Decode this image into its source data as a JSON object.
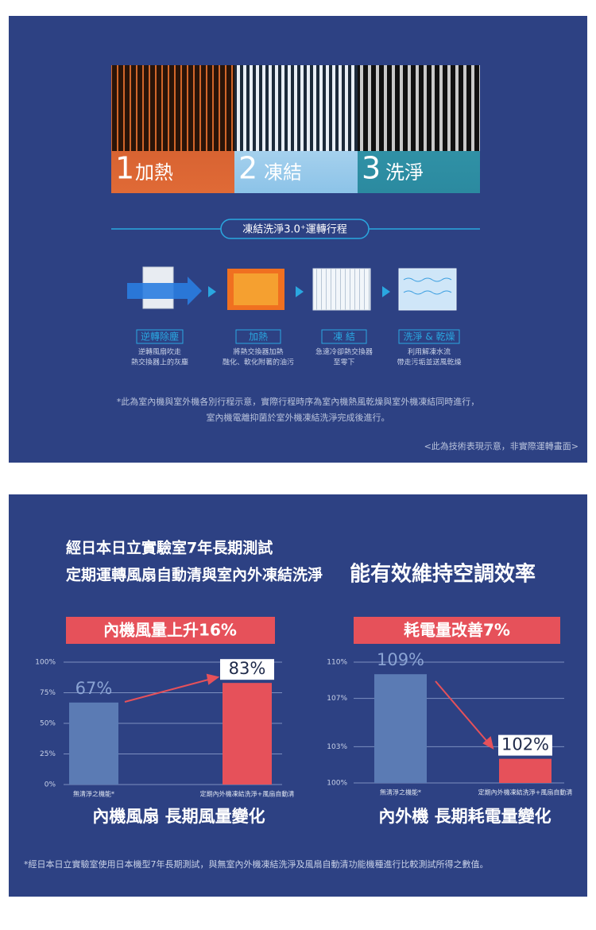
{
  "top_panel": {
    "steps": [
      {
        "number": "1",
        "label": "加熱"
      },
      {
        "number": "2",
        "label": "凍結"
      },
      {
        "number": "3",
        "label": "洗淨"
      }
    ],
    "process_title": "凍結洗淨3.0⁺運轉行程",
    "stages": [
      {
        "label": "逆轉除塵",
        "description": [
          "逆轉風扇吹走",
          "熱交換器上的灰塵"
        ]
      },
      {
        "label": "加熱",
        "description": [
          "將熱交換器加熱",
          "融化、軟化附著的油污"
        ]
      },
      {
        "label": "凍 結",
        "description": [
          "急速冷卻熱交換器",
          "至零下"
        ]
      },
      {
        "label": "洗淨 & 乾燥",
        "description": [
          "利用解凍水流",
          "帶走污垢並送風乾燥"
        ]
      }
    ],
    "note": [
      "*此為室內機與室外機各別行程示意，實際行程時序為室內機熱風乾燥與室外機凍結同時進行，",
      "室內機電離抑菌於室外機凍結洗淨完成後進行。"
    ],
    "disclaimer": "<此為技術表現示意，非實際運轉畫面>"
  },
  "bottom_panel": {
    "headline": "經日本日立實驗室7年長期測試",
    "subheadline": "定期運轉風扇自動清與室內外凍結洗淨",
    "emphasis": "能有效維持空調效率",
    "footnote": "*經日本日立實驗室使用日本機型7年長期測試，與無室內外機凍結洗淨及風扇自動清功能機種進行比較測試所得之數值。"
  },
  "chart_data": [
    {
      "type": "bar",
      "header": "內機風量上升16%",
      "title": "內機風扇 長期風量變化",
      "categories": [
        "無清淨之機能*",
        "定期內外機凍結洗淨+風扇自動清"
      ],
      "values": [
        67,
        83
      ],
      "value_labels": [
        "67%",
        "83%"
      ],
      "colors": [
        "#5b7bb4",
        "#e6515a"
      ],
      "ylim": [
        0,
        100
      ],
      "yticks": [
        {
          "value": 0,
          "label": "0%"
        },
        {
          "value": 25,
          "label": "25%"
        },
        {
          "value": 50,
          "label": "50%"
        },
        {
          "value": 75,
          "label": "75%"
        },
        {
          "value": 100,
          "label": "100%"
        }
      ],
      "grid": true
    },
    {
      "type": "bar",
      "header": "耗電量改善7%",
      "title": "內外機 長期耗電量變化",
      "categories": [
        "無清淨之機能*",
        "定期內外機凍結洗淨+風扇自動清"
      ],
      "values": [
        109,
        102
      ],
      "value_labels": [
        "109%",
        "102%"
      ],
      "colors": [
        "#5b7bb4",
        "#e6515a"
      ],
      "ylim": [
        100,
        110
      ],
      "yticks": [
        {
          "value": 100,
          "label": "100%"
        },
        {
          "value": 103,
          "label": "103%"
        },
        {
          "value": 107,
          "label": "107%"
        },
        {
          "value": 110,
          "label": "110%"
        }
      ],
      "grid": true
    }
  ]
}
